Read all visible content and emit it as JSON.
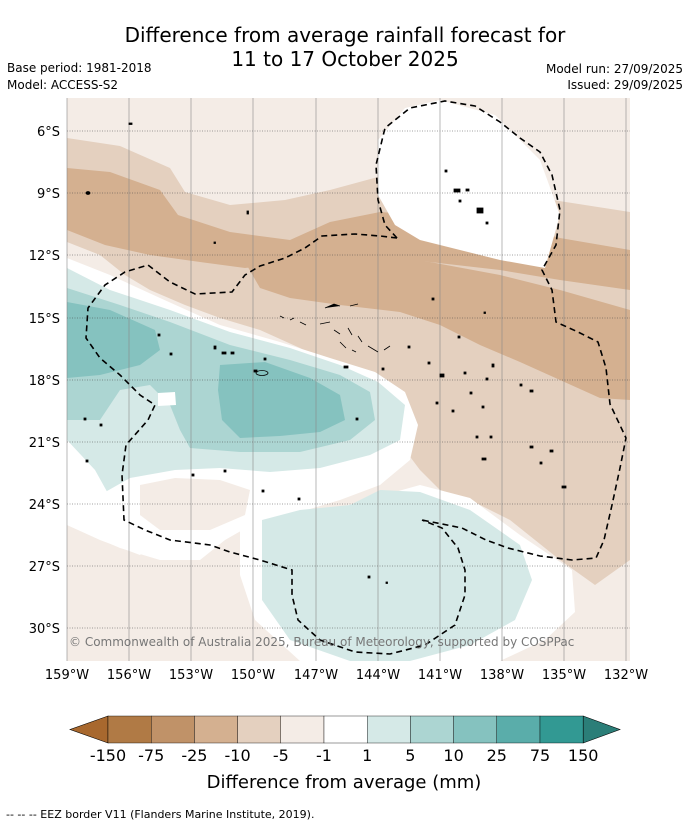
{
  "title": {
    "line1": "Difference from average rainfall forecast for",
    "line2": "11 to 17 October 2025"
  },
  "meta": {
    "base_period": "Base period: 1981-2018",
    "model": "Model: ACCESS-S2",
    "model_run": "Model run: 27/09/2025",
    "issued": "Issued: 29/09/2025"
  },
  "map": {
    "copyright": "© Commonwealth of Australia 2025, Bureau of Meteorology, supported by COSPPac",
    "lat_labels": [
      "6°S",
      "9°S",
      "12°S",
      "15°S",
      "18°S",
      "21°S",
      "24°S",
      "27°S",
      "30°S"
    ],
    "lon_labels": [
      "159°W",
      "156°W",
      "153°W",
      "150°W",
      "147°W",
      "144°W",
      "141°W",
      "138°W",
      "135°W",
      "132°W"
    ]
  },
  "colorbar": {
    "tick_labels": [
      "-150",
      "-75",
      "-25",
      "-10",
      "-5",
      "-1",
      "1",
      "5",
      "10",
      "25",
      "75",
      "150"
    ],
    "colors": [
      "#a8682e",
      "#b07a45",
      "#c09268",
      "#d4b090",
      "#e4d0bf",
      "#f4ece6",
      "#ffffff",
      "#d5e9e7",
      "#acd5d2",
      "#85c2bf",
      "#5aadaa",
      "#329993",
      "#2b7e78"
    ],
    "title": "Difference from average (mm)"
  },
  "footer": {
    "legend": "--  --  -- EEZ border V11 (Flanders Marine Institute, 2019)."
  }
}
